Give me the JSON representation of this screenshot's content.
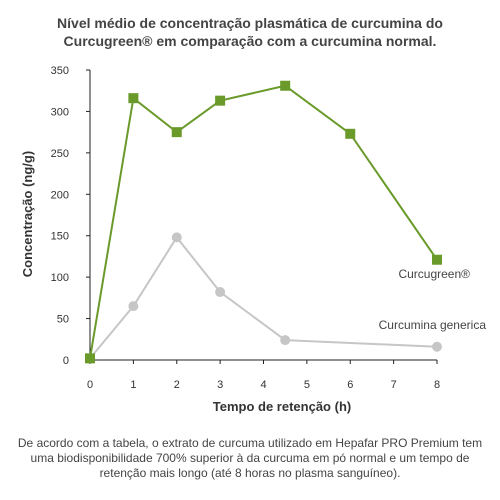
{
  "chart_data": {
    "type": "line",
    "title_line1": "Nível médio de concentração plasmática de curcumina do",
    "title_line2": "Curcugreen® em comparação com a curcumina normal.",
    "xlabel": "Tempo de retenção (h)",
    "ylabel": "Concentração (ng/g)",
    "xlim": [
      0,
      8
    ],
    "ylim": [
      0,
      350
    ],
    "x_ticks": [
      0,
      1,
      2,
      3,
      4,
      5,
      6,
      7,
      8
    ],
    "y_ticks": [
      0,
      50,
      100,
      150,
      200,
      250,
      300,
      350
    ],
    "grid": false,
    "series": [
      {
        "name": "Curcugreen®",
        "color": "#6a9a2a",
        "marker": "square",
        "x": [
          0,
          1,
          2,
          3,
          4.5,
          6,
          8
        ],
        "y": [
          2,
          316,
          275,
          313,
          331,
          273,
          121
        ]
      },
      {
        "name": "Curcumina generica",
        "color": "#c6c6c6",
        "marker": "circle",
        "x": [
          0,
          1,
          2,
          3,
          4.5,
          8
        ],
        "y": [
          2,
          65,
          148,
          82,
          24,
          16
        ]
      }
    ],
    "caption": "De acordo com a tabela, o extrato de curcuma utilizado em Hepafar PRO Premium tem uma biodisponibilidade 700% superior à da curcuma em pó normal e um tempo de retenção mais longo (até 8 horas no plasma sanguíneo)."
  }
}
